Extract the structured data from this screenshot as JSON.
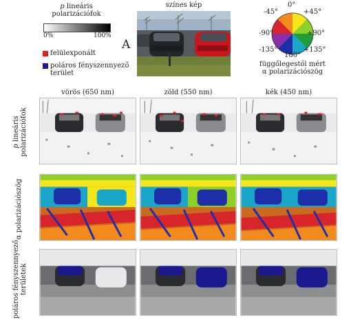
{
  "legend": {
    "polarization_title_p": "p",
    "polarization_title_rest": "lineáris",
    "polarization_title_line2": "polarizációfok",
    "scale_min": "0%",
    "scale_max": "100%",
    "overexposed": "felülexponált",
    "overexposed_color": "#e02020",
    "polarized_pollution_line1": "poláros fényszennyező",
    "polarized_pollution_line2": "terület",
    "polarized_pollution_color": "#1a1a8e"
  },
  "top_photo": {
    "title": "színes kép",
    "panel_letter": "A"
  },
  "angle_wheel": {
    "labels": {
      "n0": "0°",
      "p45": "+45°",
      "m45": "-45°",
      "p90": "+90°",
      "m90": "-90°",
      "p135": "+135°",
      "m135": "-135°",
      "d180": "180°"
    },
    "caption_line1": "függőlegestől mért",
    "caption_line2": "α polarizációszög"
  },
  "columns": [
    "vörös (650 nm)",
    "zöld (550 nm)",
    "kék (450 nm)"
  ],
  "rows": {
    "degree": {
      "p": "p",
      "rest": "lineáris",
      "line2": "polarizációfok"
    },
    "angle": {
      "text": "α polarizációszög"
    },
    "polluting": {
      "line1": "poláros fényszennyező",
      "line2": "területek"
    }
  }
}
